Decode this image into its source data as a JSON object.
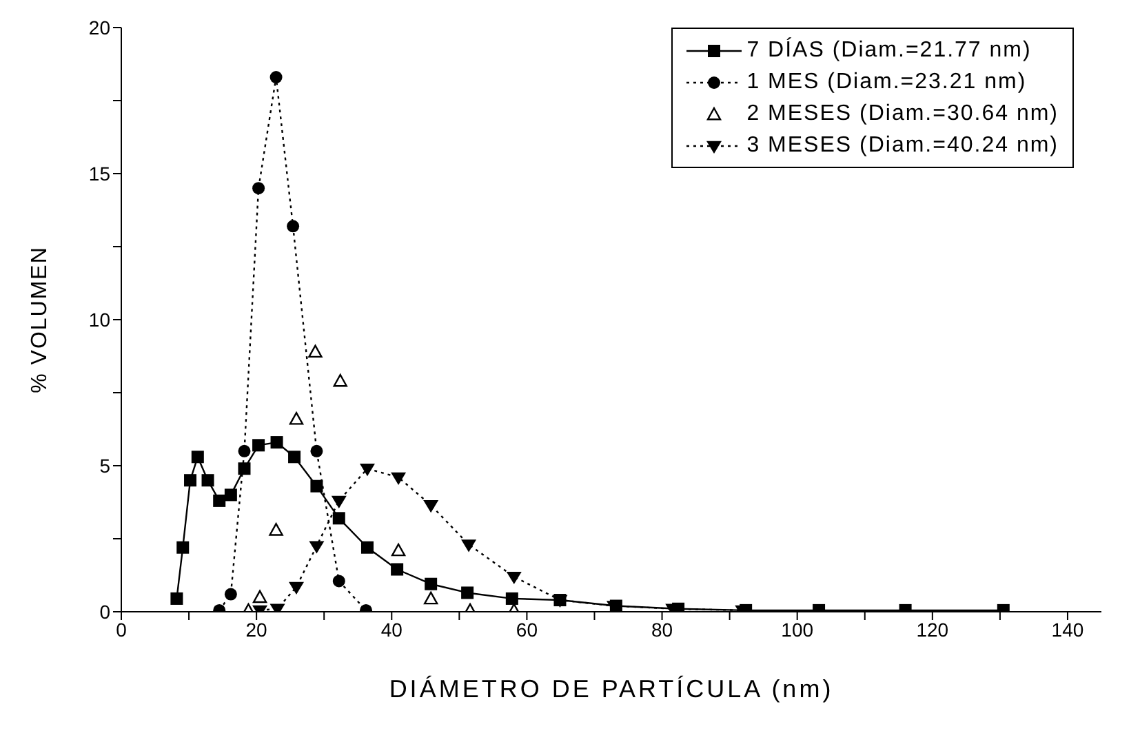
{
  "chart_data": {
    "type": "line",
    "xlabel": "DIÁMETRO DE PARTÍCULA (nm)",
    "ylabel": "% VOLUMEN",
    "xlim": [
      0,
      145
    ],
    "xticks": [
      0,
      {
        "value": 10,
        "label": null
      },
      20,
      {
        "value": 30,
        "label": null
      },
      40,
      {
        "value": 50,
        "label": null
      },
      60,
      {
        "value": 70,
        "label": null
      },
      80,
      {
        "value": 90,
        "label": null
      },
      100,
      {
        "value": 110,
        "label": null
      },
      120,
      {
        "value": 130,
        "label": null
      },
      140
    ],
    "ylim": [
      0,
      20
    ],
    "yticks": [
      0,
      {
        "value": 2.5,
        "label": null
      },
      5,
      {
        "value": 7.5,
        "label": null
      },
      10,
      {
        "value": 12.5,
        "label": null
      },
      15,
      {
        "value": 17.5,
        "label": null
      },
      20
    ],
    "legend": "top right",
    "series": [
      {
        "name": "7 DÍAS (Diam.=21.77 nm)",
        "color": "#000000",
        "marker": "square",
        "line_style": "solid",
        "x": [
          8.2,
          9.1,
          10.2,
          11.3,
          12.8,
          14.5,
          16.2,
          18.2,
          20.3,
          23.0,
          25.6,
          28.9,
          32.2,
          36.4,
          40.8,
          45.8,
          51.2,
          57.8,
          64.9,
          73.2,
          82.4,
          92.4,
          103.2,
          116.0,
          130.5
        ],
        "values": [
          0.45,
          2.2,
          4.5,
          5.3,
          4.5,
          3.8,
          4.0,
          4.9,
          5.7,
          5.8,
          5.3,
          4.3,
          3.2,
          2.2,
          1.45,
          0.95,
          0.65,
          0.45,
          0.4,
          0.2,
          0.1,
          0.05,
          0.05,
          0.05,
          0.05
        ]
      },
      {
        "name": "1 MES (Diam.=23.21 nm)",
        "color": "#000000",
        "marker": "circle",
        "line_style": "dotted",
        "x": [
          14.5,
          16.2,
          18.2,
          20.3,
          22.9,
          25.4,
          28.9,
          32.2,
          36.2
        ],
        "values": [
          0.05,
          0.6,
          5.5,
          14.5,
          18.3,
          13.2,
          5.5,
          1.05,
          0.05
        ]
      },
      {
        "name": "2 MESES (Diam.=30.64 nm)",
        "type": "scatter",
        "color": "#000000",
        "marker": "triangle",
        "x": [
          18.8,
          20.5,
          22.9,
          25.9,
          28.7,
          32.4,
          41.0,
          45.8,
          51.6,
          58.1
        ],
        "values": [
          0.05,
          0.5,
          2.8,
          6.6,
          8.9,
          7.9,
          2.1,
          0.45,
          0.05,
          0.05
        ]
      },
      {
        "name": "3 MESES (Diam.=40.24 nm)",
        "color": "#000000",
        "marker": "triangle-down",
        "line_style": "dotted",
        "x": [
          20.5,
          23.1,
          25.9,
          28.9,
          32.2,
          36.4,
          41.0,
          45.8,
          51.4,
          58.1,
          64.9,
          72.9,
          81.6,
          91.9
        ],
        "values": [
          0.05,
          0.1,
          0.85,
          2.25,
          3.8,
          4.9,
          4.6,
          3.65,
          2.3,
          1.2,
          0.4,
          0.2,
          0.1,
          0.05
        ]
      }
    ]
  }
}
